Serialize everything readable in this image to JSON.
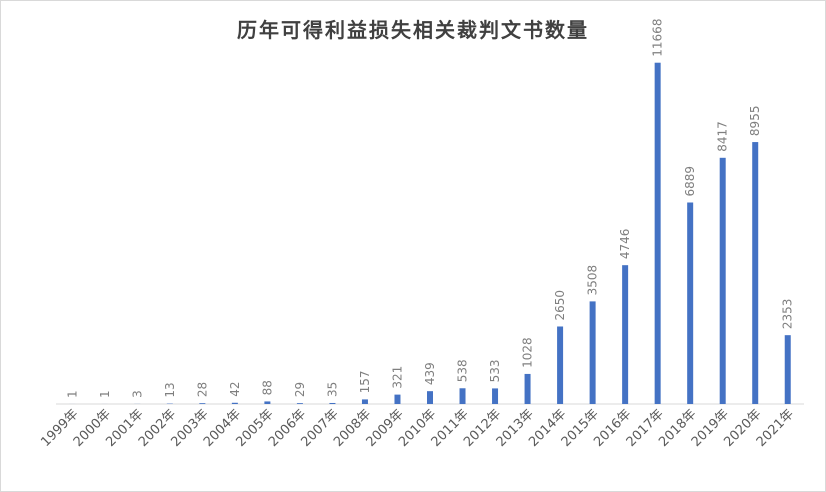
{
  "chart_data": {
    "type": "bar",
    "title": "历年可得利益损失相关裁判文书数量",
    "categories": [
      "1999年",
      "2000年",
      "2001年",
      "2002年",
      "2003年",
      "2004年",
      "2005年",
      "2006年",
      "2007年",
      "2008年",
      "2009年",
      "2010年",
      "2011年",
      "2012年",
      "2013年",
      "2014年",
      "2015年",
      "2016年",
      "2017年",
      "2018年",
      "2019年",
      "2020年",
      "2021年"
    ],
    "values": [
      1,
      1,
      3,
      13,
      28,
      42,
      88,
      29,
      35,
      157,
      321,
      439,
      538,
      533,
      1028,
      2650,
      3508,
      4746,
      11668,
      6889,
      8417,
      8955,
      2353
    ],
    "data_labels": [
      "1",
      "1",
      "3",
      "13",
      "28",
      "42",
      "88",
      "29",
      "35",
      "157",
      "321",
      "439",
      "538",
      "533",
      "1028",
      "2650",
      "3508",
      "4746",
      "11668",
      "6889",
      "8417",
      "8955",
      "2353"
    ],
    "xlabel": "",
    "ylabel": "",
    "ylim": [
      0,
      12000
    ],
    "grid": false,
    "legend": "none",
    "bar_color": "#4472c4",
    "axis_color": "#d9d9d9"
  }
}
